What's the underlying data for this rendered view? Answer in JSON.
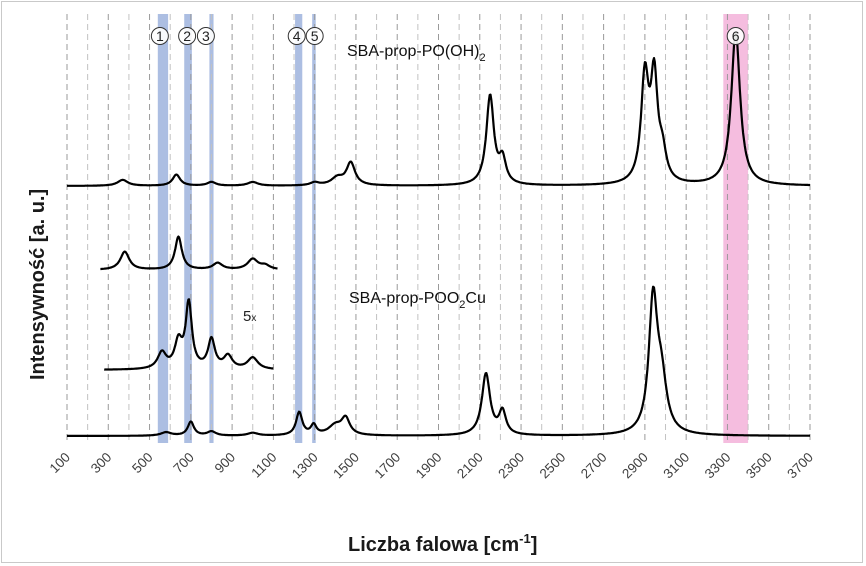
{
  "chart_data": {
    "type": "line",
    "title": "",
    "xlabel": "Liczba falowa [cm⁻¹]",
    "xlabel_base": "Liczba falowa [cm",
    "xlabel_sup": "-1",
    "xlabel_end": "]",
    "ylabel": "Intensywność [a. u.]",
    "xlim": [
      100,
      3700
    ],
    "grid": "vertical dashed every 100 cm-1",
    "xticks": [
      "100",
      "300",
      "500",
      "700",
      "900",
      "1100",
      "1300",
      "1500",
      "1700",
      "1900",
      "2100",
      "2300",
      "2500",
      "2700",
      "2900",
      "3100",
      "3300",
      "3500",
      "3700"
    ],
    "highlight_bands": [
      {
        "from": 540,
        "to": 590,
        "color": "#9eb3dd"
      },
      {
        "from": 668,
        "to": 705,
        "color": "#9eb3dd"
      },
      {
        "from": 790,
        "to": 810,
        "color": "#9eb3dd"
      },
      {
        "from": 1205,
        "to": 1240,
        "color": "#9eb3dd"
      },
      {
        "from": 1288,
        "to": 1305,
        "color": "#9eb3dd"
      },
      {
        "from": 3280,
        "to": 3400,
        "color": "#f3b1d9"
      }
    ],
    "band_markers": [
      {
        "label": "1",
        "x": 550
      },
      {
        "label": "2",
        "x": 682
      },
      {
        "label": "3",
        "x": 773
      },
      {
        "label": "4",
        "x": 1213
      },
      {
        "label": "5",
        "x": 1300
      },
      {
        "label": "6",
        "x": 3340
      }
    ],
    "series": [
      {
        "name": "SBA-prop-PO(OH)₂",
        "label_base": "SBA-prop-PO(OH)",
        "label_sub": "2",
        "color": "#000000",
        "peaks": [
          {
            "x": 370,
            "h": 0.08,
            "w": 30
          },
          {
            "x": 630,
            "h": 0.15,
            "w": 22
          },
          {
            "x": 800,
            "h": 0.05,
            "w": 25
          },
          {
            "x": 1000,
            "h": 0.05,
            "w": 30
          },
          {
            "x": 1300,
            "h": 0.04,
            "w": 25
          },
          {
            "x": 1410,
            "h": 0.1,
            "w": 35
          },
          {
            "x": 1475,
            "h": 0.3,
            "w": 25
          },
          {
            "x": 2150,
            "h": 1.19,
            "w": 22
          },
          {
            "x": 2210,
            "h": 0.32,
            "w": 20
          },
          {
            "x": 2900,
            "h": 1.4,
            "w": 22
          },
          {
            "x": 2945,
            "h": 1.34,
            "w": 20
          },
          {
            "x": 2985,
            "h": 0.35,
            "w": 22
          },
          {
            "x": 3340,
            "h": 2.04,
            "w": 26
          }
        ]
      },
      {
        "name": "SBA-prop-POO₂Cu",
        "label_base": "SBA-prop-POO",
        "label_sub": "2",
        "label_end": "Cu",
        "color": "#000000",
        "peaks": [
          {
            "x": 580,
            "h": 0.05,
            "w": 30
          },
          {
            "x": 700,
            "h": 0.2,
            "w": 18
          },
          {
            "x": 800,
            "h": 0.06,
            "w": 25
          },
          {
            "x": 1000,
            "h": 0.04,
            "w": 30
          },
          {
            "x": 1225,
            "h": 0.33,
            "w": 18
          },
          {
            "x": 1295,
            "h": 0.14,
            "w": 16
          },
          {
            "x": 1400,
            "h": 0.14,
            "w": 40
          },
          {
            "x": 1450,
            "h": 0.23,
            "w": 24
          },
          {
            "x": 2130,
            "h": 0.88,
            "w": 24
          },
          {
            "x": 2210,
            "h": 0.33,
            "w": 20
          },
          {
            "x": 2940,
            "h": 1.88,
            "w": 25
          },
          {
            "x": 2980,
            "h": 0.7,
            "w": 30
          }
        ]
      }
    ],
    "insets": [
      {
        "name": "SBA-prop-PO(OH)₂ inset",
        "peaks": [
          {
            "x": 380,
            "h": 0.55,
            "w": 26
          },
          {
            "x": 640,
            "h": 1.0,
            "w": 20
          },
          {
            "x": 830,
            "h": 0.2,
            "w": 28
          },
          {
            "x": 1000,
            "h": 0.32,
            "w": 30
          },
          {
            "x": 1060,
            "h": 0.12,
            "w": 28
          }
        ]
      },
      {
        "name": "SBA-prop-POO₂Cu inset",
        "peaks": [
          {
            "x": 560,
            "h": 0.25,
            "w": 25
          },
          {
            "x": 640,
            "h": 0.4,
            "w": 22
          },
          {
            "x": 690,
            "h": 1.0,
            "w": 18
          },
          {
            "x": 800,
            "h": 0.45,
            "w": 20
          },
          {
            "x": 880,
            "h": 0.2,
            "w": 25
          },
          {
            "x": 1000,
            "h": 0.18,
            "w": 30
          }
        ]
      }
    ],
    "magnification_label": "5",
    "magnification_suffix": "x"
  }
}
